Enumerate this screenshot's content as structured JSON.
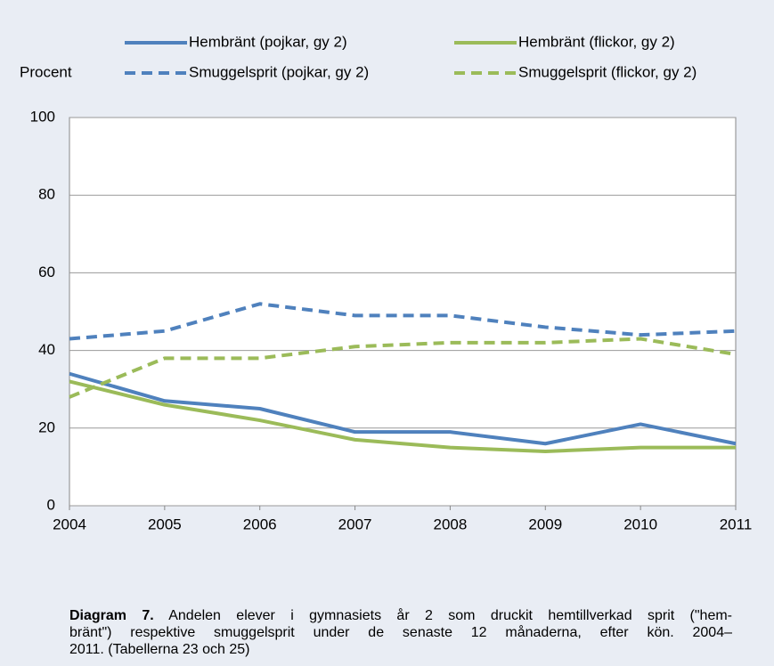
{
  "chart_data": {
    "type": "line",
    "y_label": "Procent",
    "x": [
      2004,
      2005,
      2006,
      2007,
      2008,
      2009,
      2010,
      2011
    ],
    "xlim": [
      2004,
      2011
    ],
    "xticks": [
      2004,
      2005,
      2006,
      2007,
      2008,
      2009,
      2010,
      2011
    ],
    "ylim": [
      0,
      100
    ],
    "yticks": [
      0,
      20,
      40,
      60,
      80,
      100
    ],
    "grid": true,
    "series": [
      {
        "name": "Hembränt (pojkar, gy 2)",
        "color": "#4f81bd",
        "dashed": false,
        "values": [
          34,
          27,
          25,
          19,
          19,
          16,
          21,
          16
        ]
      },
      {
        "name": "Hembränt (flickor, gy 2)",
        "color": "#9bbb59",
        "dashed": false,
        "values": [
          32,
          26,
          22,
          17,
          15,
          14,
          15,
          15
        ]
      },
      {
        "name": "Smuggelsprit (pojkar, gy 2)",
        "color": "#4f81bd",
        "dashed": true,
        "values": [
          43,
          45,
          52,
          49,
          49,
          46,
          44,
          45
        ]
      },
      {
        "name": "Smuggelsprit (flickor, gy 2)",
        "color": "#9bbb59",
        "dashed": true,
        "values": [
          28,
          38,
          38,
          41,
          42,
          42,
          43,
          39
        ]
      }
    ],
    "caption": {
      "label": "Diagram 7.",
      "lines": [
        "Andelen elever i gymnasiets år 2 som druckit hemtillverkad sprit (\"hem-",
        "bränt\") respektive smuggelsprit under de senaste 12 månaderna, efter kön. 2004–",
        "2011. (Tabellerna 23 och 25)"
      ]
    }
  }
}
